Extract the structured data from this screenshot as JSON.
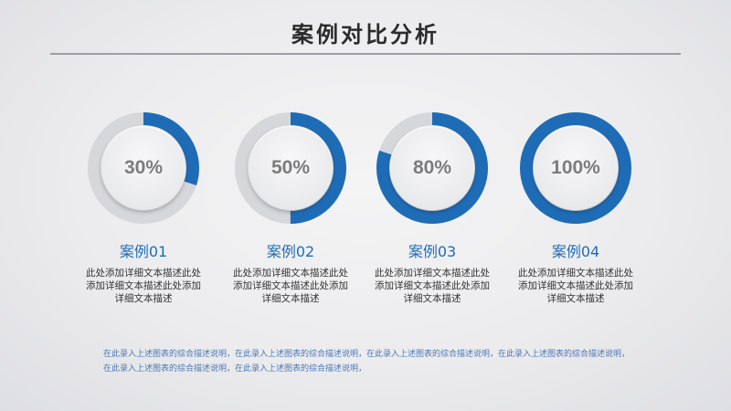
{
  "header": {
    "title": "案例对比分析"
  },
  "colors": {
    "accent": "#1f6cb6",
    "track": "#d6d7da"
  },
  "cases": [
    {
      "label": "30%",
      "progress": 0.3,
      "title": "案例01",
      "description": "此处添加详细文本描述此处添加详细文本描述此处添加详细文本描述"
    },
    {
      "label": "50%",
      "progress": 0.5,
      "title": "案例02",
      "description": "此处添加详细文本描述此处添加详细文本描述此处添加详细文本描述"
    },
    {
      "label": "80%",
      "progress": 0.8,
      "title": "案例03",
      "description": "此处添加详细文本描述此处添加详细文本描述此处添加详细文本描述"
    },
    {
      "label": "100%",
      "progress": 1.0,
      "title": "案例04",
      "description": "此处添加详细文本描述此处添加详细文本描述此处添加详细文本描述"
    }
  ],
  "footnote": "在此录入上述图表的综合描述说明，在此录入上述图表的综合描述说明，在此录入上述图表的综合描述说明，在此录入上述图表的综合描述说明，在此录入上述图表的综合描述说明，在此录入上述图表的综合描述说明，"
}
